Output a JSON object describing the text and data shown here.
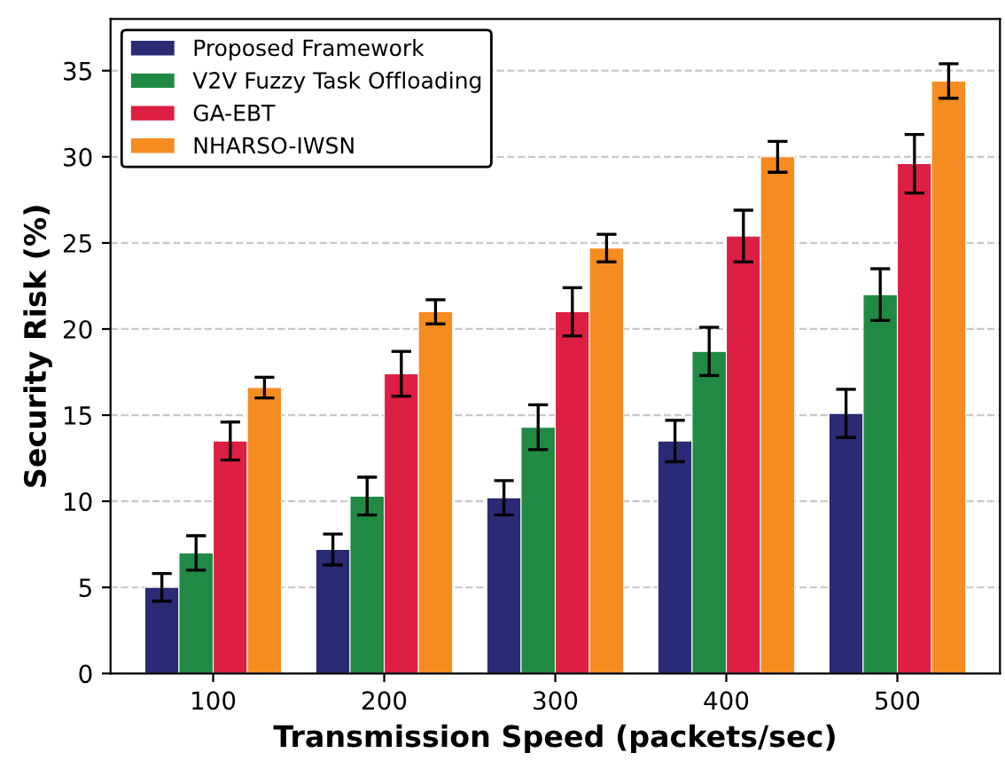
{
  "chart_data": {
    "type": "bar",
    "xlabel": "Transmission Speed (packets/sec)",
    "ylabel": "Security Risk (%)",
    "categories": [
      "100",
      "200",
      "300",
      "400",
      "500"
    ],
    "series": [
      {
        "name": "Proposed Framework",
        "color": "#2b2a74",
        "values": [
          5.0,
          7.2,
          10.2,
          13.5,
          15.1
        ],
        "errors": [
          0.8,
          0.9,
          1.0,
          1.2,
          1.4
        ]
      },
      {
        "name": "V2V Fuzzy Task Offloading",
        "color": "#208a45",
        "values": [
          7.0,
          10.3,
          14.3,
          18.7,
          22.0
        ],
        "errors": [
          1.0,
          1.1,
          1.3,
          1.4,
          1.5
        ]
      },
      {
        "name": "GA-EBT",
        "color": "#dc1f42",
        "values": [
          13.5,
          17.4,
          21.0,
          25.4,
          29.6
        ],
        "errors": [
          1.1,
          1.3,
          1.4,
          1.5,
          1.7
        ]
      },
      {
        "name": "NHARSO-IWSN",
        "color": "#f68b20",
        "values": [
          16.6,
          21.0,
          24.7,
          30.0,
          34.4
        ],
        "errors": [
          0.6,
          0.7,
          0.8,
          0.9,
          1.0
        ]
      }
    ],
    "ylim": [
      0,
      38
    ],
    "yticks": [
      0,
      5,
      10,
      15,
      20,
      25,
      30,
      35
    ],
    "grid": "y",
    "legend": "top left"
  }
}
